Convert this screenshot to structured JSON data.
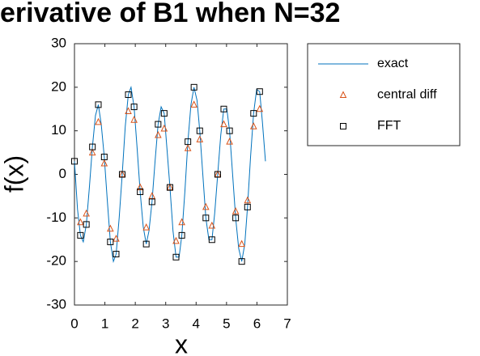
{
  "chart_data": {
    "type": "line",
    "title": "erivative of B1 when N=32",
    "xlabel": "x",
    "ylabel": "f(x)",
    "xlim": [
      0,
      7
    ],
    "ylim": [
      -30,
      30
    ],
    "xticks": [
      0,
      1,
      2,
      3,
      4,
      5,
      6,
      7
    ],
    "yticks": [
      -30,
      -20,
      -10,
      0,
      10,
      20,
      30
    ],
    "legend": "outside-right",
    "series": [
      {
        "name": "exact",
        "color": "#0072bd",
        "marker": "none",
        "x": [
          0,
          0.1,
          0.196,
          0.29,
          0.39,
          0.49,
          0.59,
          0.69,
          0.785,
          0.88,
          0.98,
          1.08,
          1.18,
          1.28,
          1.37,
          1.47,
          1.57,
          1.67,
          1.77,
          1.86,
          1.96,
          2.06,
          2.16,
          2.26,
          2.36,
          2.45,
          2.55,
          2.65,
          2.75,
          2.85,
          2.95,
          3.04,
          3.14,
          3.24,
          3.34,
          3.44,
          3.53,
          3.63,
          3.73,
          3.83,
          3.93,
          4.03,
          4.12,
          4.22,
          4.32,
          4.42,
          4.52,
          4.61,
          4.71,
          4.81,
          4.91,
          5.01,
          5.1,
          5.2,
          5.3,
          5.4,
          5.5,
          5.6,
          5.69,
          5.79,
          5.89,
          5.99,
          6.09,
          6.18,
          6.28
        ],
        "values": [
          3,
          -8,
          -14,
          -15.5,
          -11.5,
          -3,
          6.3,
          13.5,
          16,
          11.5,
          4,
          -6,
          -15.5,
          -20,
          -18.3,
          -10,
          0,
          11,
          18.3,
          20,
          15.5,
          6,
          -4,
          -12,
          -16,
          -13,
          -6.3,
          3,
          11.5,
          15.5,
          14,
          6,
          -3,
          -13,
          -19,
          -19,
          -14,
          -4,
          7.5,
          16,
          20,
          17,
          10,
          0,
          -10,
          -15,
          -15,
          -9,
          0,
          9,
          15,
          15,
          10,
          0,
          -10,
          -17,
          -20,
          -16,
          -7.5,
          4,
          14,
          19.5,
          19,
          12,
          3
        ]
      },
      {
        "name": "central diff",
        "color": "#d95319",
        "marker": "triangle",
        "x": [
          0.196,
          0.39,
          0.59,
          0.785,
          0.98,
          1.18,
          1.37,
          1.57,
          1.77,
          1.96,
          2.16,
          2.36,
          2.55,
          2.75,
          2.95,
          3.14,
          3.34,
          3.53,
          3.73,
          3.93,
          4.12,
          4.32,
          4.52,
          4.71,
          4.91,
          5.1,
          5.3,
          5.5,
          5.69,
          5.89,
          6.09
        ],
        "values": [
          -11,
          -9,
          5,
          12,
          2.5,
          -12.5,
          -14.8,
          0,
          14.5,
          12.5,
          -3,
          -12.2,
          -5,
          9,
          10.5,
          -3,
          -15.3,
          -11,
          6,
          16,
          8,
          -7.5,
          -11.8,
          0,
          11.5,
          7.5,
          -8.5,
          -16,
          -6,
          11,
          15
        ]
      },
      {
        "name": "FFT",
        "color": "#000000",
        "marker": "square",
        "x": [
          0,
          0.196,
          0.39,
          0.59,
          0.785,
          0.98,
          1.18,
          1.37,
          1.57,
          1.77,
          1.96,
          2.16,
          2.36,
          2.55,
          2.75,
          2.95,
          3.14,
          3.34,
          3.53,
          3.73,
          3.93,
          4.12,
          4.32,
          4.52,
          4.71,
          4.91,
          5.1,
          5.3,
          5.5,
          5.69,
          5.89,
          6.09
        ],
        "values": [
          3,
          -14,
          -11.5,
          6.3,
          16,
          4,
          -15.5,
          -18.3,
          0,
          18.3,
          15.5,
          -4,
          -16,
          -6.3,
          11.5,
          14,
          -3,
          -19,
          -14,
          7.5,
          20,
          10,
          -10,
          -15,
          0,
          15,
          10,
          -10,
          -20,
          -7.5,
          14,
          19
        ]
      }
    ]
  }
}
